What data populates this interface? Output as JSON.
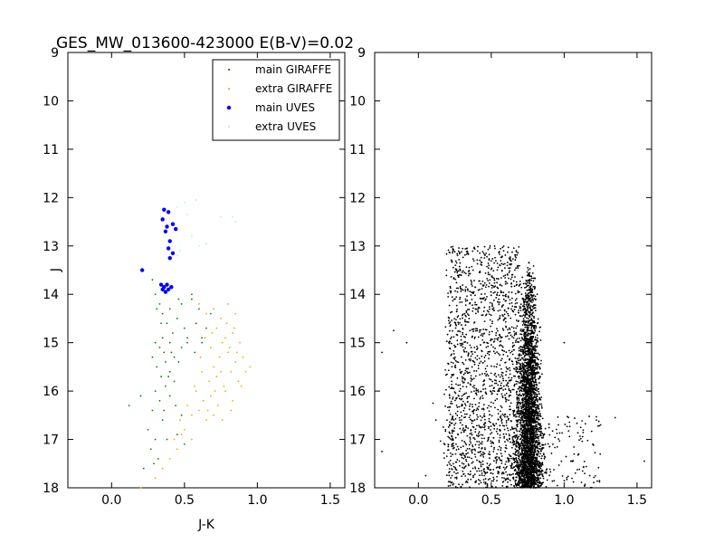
{
  "chart_data": [
    {
      "type": "scatter",
      "title": "GES_MW_013600-423000 E(B-V)=0.02",
      "xlabel": "J-K",
      "ylabel": "J",
      "xlim": [
        -0.3,
        1.6
      ],
      "ylim": [
        18,
        9
      ],
      "y_inverted": true,
      "xticks": [
        "0.0",
        "0.5",
        "1.0",
        "1.5"
      ],
      "yticks": [
        "9",
        "10",
        "11",
        "12",
        "13",
        "14",
        "15",
        "16",
        "17",
        "18"
      ],
      "grid": false,
      "legend_position": "top-right",
      "series": [
        {
          "name": "main GIRAFFE",
          "color": "#008000",
          "marker": "small-dot",
          "points": [
            [
              0.28,
              13.7
            ],
            [
              0.3,
              14.0
            ],
            [
              0.33,
              14.2
            ],
            [
              0.35,
              14.4
            ],
            [
              0.38,
              14.6
            ],
            [
              0.4,
              14.3
            ],
            [
              0.42,
              14.8
            ],
            [
              0.45,
              14.5
            ],
            [
              0.48,
              14.2
            ],
            [
              0.5,
              14.7
            ],
            [
              0.52,
              14.9
            ],
            [
              0.55,
              14.1
            ],
            [
              0.58,
              14.6
            ],
            [
              0.6,
              14.3
            ],
            [
              0.62,
              14.9
            ],
            [
              0.35,
              14.9
            ],
            [
              0.3,
              15.0
            ],
            [
              0.33,
              15.1
            ],
            [
              0.36,
              15.2
            ],
            [
              0.4,
              15.0
            ],
            [
              0.43,
              15.3
            ],
            [
              0.48,
              15.1
            ],
            [
              0.52,
              15.0
            ],
            [
              0.57,
              15.2
            ],
            [
              0.62,
              15.0
            ],
            [
              0.65,
              14.7
            ],
            [
              0.28,
              15.3
            ],
            [
              0.31,
              15.5
            ],
            [
              0.34,
              15.7
            ],
            [
              0.37,
              15.9
            ],
            [
              0.4,
              15.6
            ],
            [
              0.43,
              15.8
            ],
            [
              0.46,
              15.4
            ],
            [
              0.3,
              16.0
            ],
            [
              0.33,
              16.2
            ],
            [
              0.36,
              16.4
            ],
            [
              0.4,
              16.1
            ],
            [
              0.44,
              16.3
            ],
            [
              0.48,
              16.5
            ],
            [
              0.28,
              16.4
            ],
            [
              0.35,
              16.6
            ],
            [
              0.25,
              16.8
            ],
            [
              0.3,
              17.0
            ],
            [
              0.38,
              17.0
            ],
            [
              0.45,
              16.9
            ],
            [
              0.5,
              17.1
            ],
            [
              0.27,
              17.2
            ],
            [
              0.32,
              17.4
            ],
            [
              0.22,
              17.6
            ],
            [
              0.29,
              17.5
            ],
            [
              0.12,
              16.3
            ],
            [
              0.2,
              16.1
            ],
            [
              0.37,
              15.4
            ],
            [
              0.39,
              15.7
            ],
            [
              0.41,
              15.2
            ],
            [
              0.55,
              14.0
            ],
            [
              0.68,
              14.4
            ],
            [
              0.46,
              14.1
            ],
            [
              0.34,
              14.6
            ],
            [
              0.31,
              14.3
            ]
          ]
        },
        {
          "name": "extra GIRAFFE",
          "color": "#ffa500",
          "marker": "small-dot",
          "points": [
            [
              0.6,
              14.2
            ],
            [
              0.65,
              14.4
            ],
            [
              0.7,
              14.3
            ],
            [
              0.75,
              14.5
            ],
            [
              0.8,
              14.2
            ],
            [
              0.85,
              14.4
            ],
            [
              0.72,
              14.7
            ],
            [
              0.78,
              14.9
            ],
            [
              0.83,
              14.8
            ],
            [
              0.88,
              15.0
            ],
            [
              0.68,
              15.1
            ],
            [
              0.74,
              15.3
            ],
            [
              0.8,
              15.2
            ],
            [
              0.85,
              15.4
            ],
            [
              0.9,
              15.3
            ],
            [
              0.95,
              15.5
            ],
            [
              0.62,
              15.6
            ],
            [
              0.67,
              15.8
            ],
            [
              0.72,
              15.7
            ],
            [
              0.77,
              15.9
            ],
            [
              0.82,
              15.6
            ],
            [
              0.87,
              15.8
            ],
            [
              0.58,
              16.0
            ],
            [
              0.63,
              16.2
            ],
            [
              0.68,
              16.1
            ],
            [
              0.73,
              16.3
            ],
            [
              0.78,
              16.0
            ],
            [
              0.83,
              16.2
            ],
            [
              0.55,
              16.5
            ],
            [
              0.6,
              16.4
            ],
            [
              0.65,
              16.6
            ],
            [
              0.7,
              16.5
            ],
            [
              0.5,
              16.8
            ],
            [
              0.55,
              17.0
            ],
            [
              0.45,
              17.2
            ],
            [
              0.48,
              16.9
            ],
            [
              0.4,
              17.4
            ],
            [
              0.35,
              17.6
            ],
            [
              0.3,
              17.8
            ],
            [
              0.2,
              18.0
            ],
            [
              0.76,
              15.0
            ],
            [
              0.81,
              15.1
            ],
            [
              0.86,
              15.2
            ],
            [
              0.79,
              14.6
            ],
            [
              0.84,
              14.7
            ],
            [
              0.7,
              15.5
            ],
            [
              0.75,
              15.6
            ],
            [
              0.66,
              16.4
            ],
            [
              0.71,
              16.0
            ],
            [
              0.76,
              16.6
            ],
            [
              0.61,
              15.3
            ],
            [
              0.57,
              15.9
            ],
            [
              0.52,
              16.3
            ],
            [
              0.64,
              14.9
            ],
            [
              0.69,
              14.8
            ],
            [
              0.89,
              15.9
            ],
            [
              0.92,
              15.6
            ],
            [
              0.82,
              16.4
            ],
            [
              0.47,
              16.6
            ],
            [
              0.43,
              17.0
            ]
          ]
        },
        {
          "name": "main UVES",
          "color": "#0000ff",
          "marker": "dot",
          "points": [
            [
              0.36,
              12.25
            ],
            [
              0.39,
              12.3
            ],
            [
              0.35,
              12.45
            ],
            [
              0.42,
              12.55
            ],
            [
              0.38,
              12.6
            ],
            [
              0.44,
              12.65
            ],
            [
              0.37,
              12.7
            ],
            [
              0.4,
              12.9
            ],
            [
              0.39,
              13.05
            ],
            [
              0.42,
              13.15
            ],
            [
              0.4,
              13.25
            ],
            [
              0.21,
              13.5
            ],
            [
              0.34,
              13.8
            ],
            [
              0.36,
              13.85
            ],
            [
              0.38,
              13.8
            ],
            [
              0.35,
              13.9
            ],
            [
              0.37,
              13.95
            ],
            [
              0.41,
              13.85
            ],
            [
              0.39,
              13.9
            ]
          ]
        },
        {
          "name": "extra UVES",
          "color": "#afeeee",
          "marker": "small-dot",
          "points": [
            [
              0.45,
              12.2
            ],
            [
              0.5,
              12.1
            ],
            [
              0.58,
              12.05
            ],
            [
              0.75,
              12.4
            ],
            [
              0.83,
              12.4
            ],
            [
              0.85,
              12.5
            ],
            [
              0.55,
              12.8
            ],
            [
              0.6,
              13.0
            ],
            [
              0.47,
              13.1
            ],
            [
              0.45,
              13.2
            ],
            [
              0.52,
              12.35
            ],
            [
              0.65,
              12.95
            ]
          ]
        }
      ]
    },
    {
      "type": "scatter",
      "title": "",
      "xlabel": "",
      "ylabel": "",
      "xlim": [
        -0.3,
        1.6
      ],
      "ylim": [
        18,
        9
      ],
      "y_inverted": true,
      "xticks": [
        "0.0",
        "0.5",
        "1.0",
        "1.5"
      ],
      "yticks": [
        "9",
        "10",
        "11",
        "12",
        "13",
        "14",
        "15",
        "16",
        "17",
        "18"
      ],
      "grid": false,
      "series": [
        {
          "color": "#000000",
          "marker": "small-dot",
          "distribution": "dense cloud: broad band x 0.20–0.70 for J 13.0–18.0 plus dense main sequence band centered x≈0.76 (width ≈0.08) for J 13.3–18.0, thickening toward faint end; sparse outliers",
          "outliers": [
            [
              -0.17,
              14.75
            ],
            [
              -0.08,
              15.0
            ],
            [
              -0.25,
              15.2
            ],
            [
              0.1,
              16.25
            ],
            [
              0.12,
              16.6
            ],
            [
              1.35,
              16.55
            ],
            [
              1.25,
              16.7
            ],
            [
              1.1,
              17.3
            ],
            [
              1.55,
              17.45
            ],
            [
              -0.25,
              17.25
            ],
            [
              0.05,
              17.75
            ],
            [
              1.0,
              15.0
            ]
          ]
        }
      ]
    }
  ]
}
